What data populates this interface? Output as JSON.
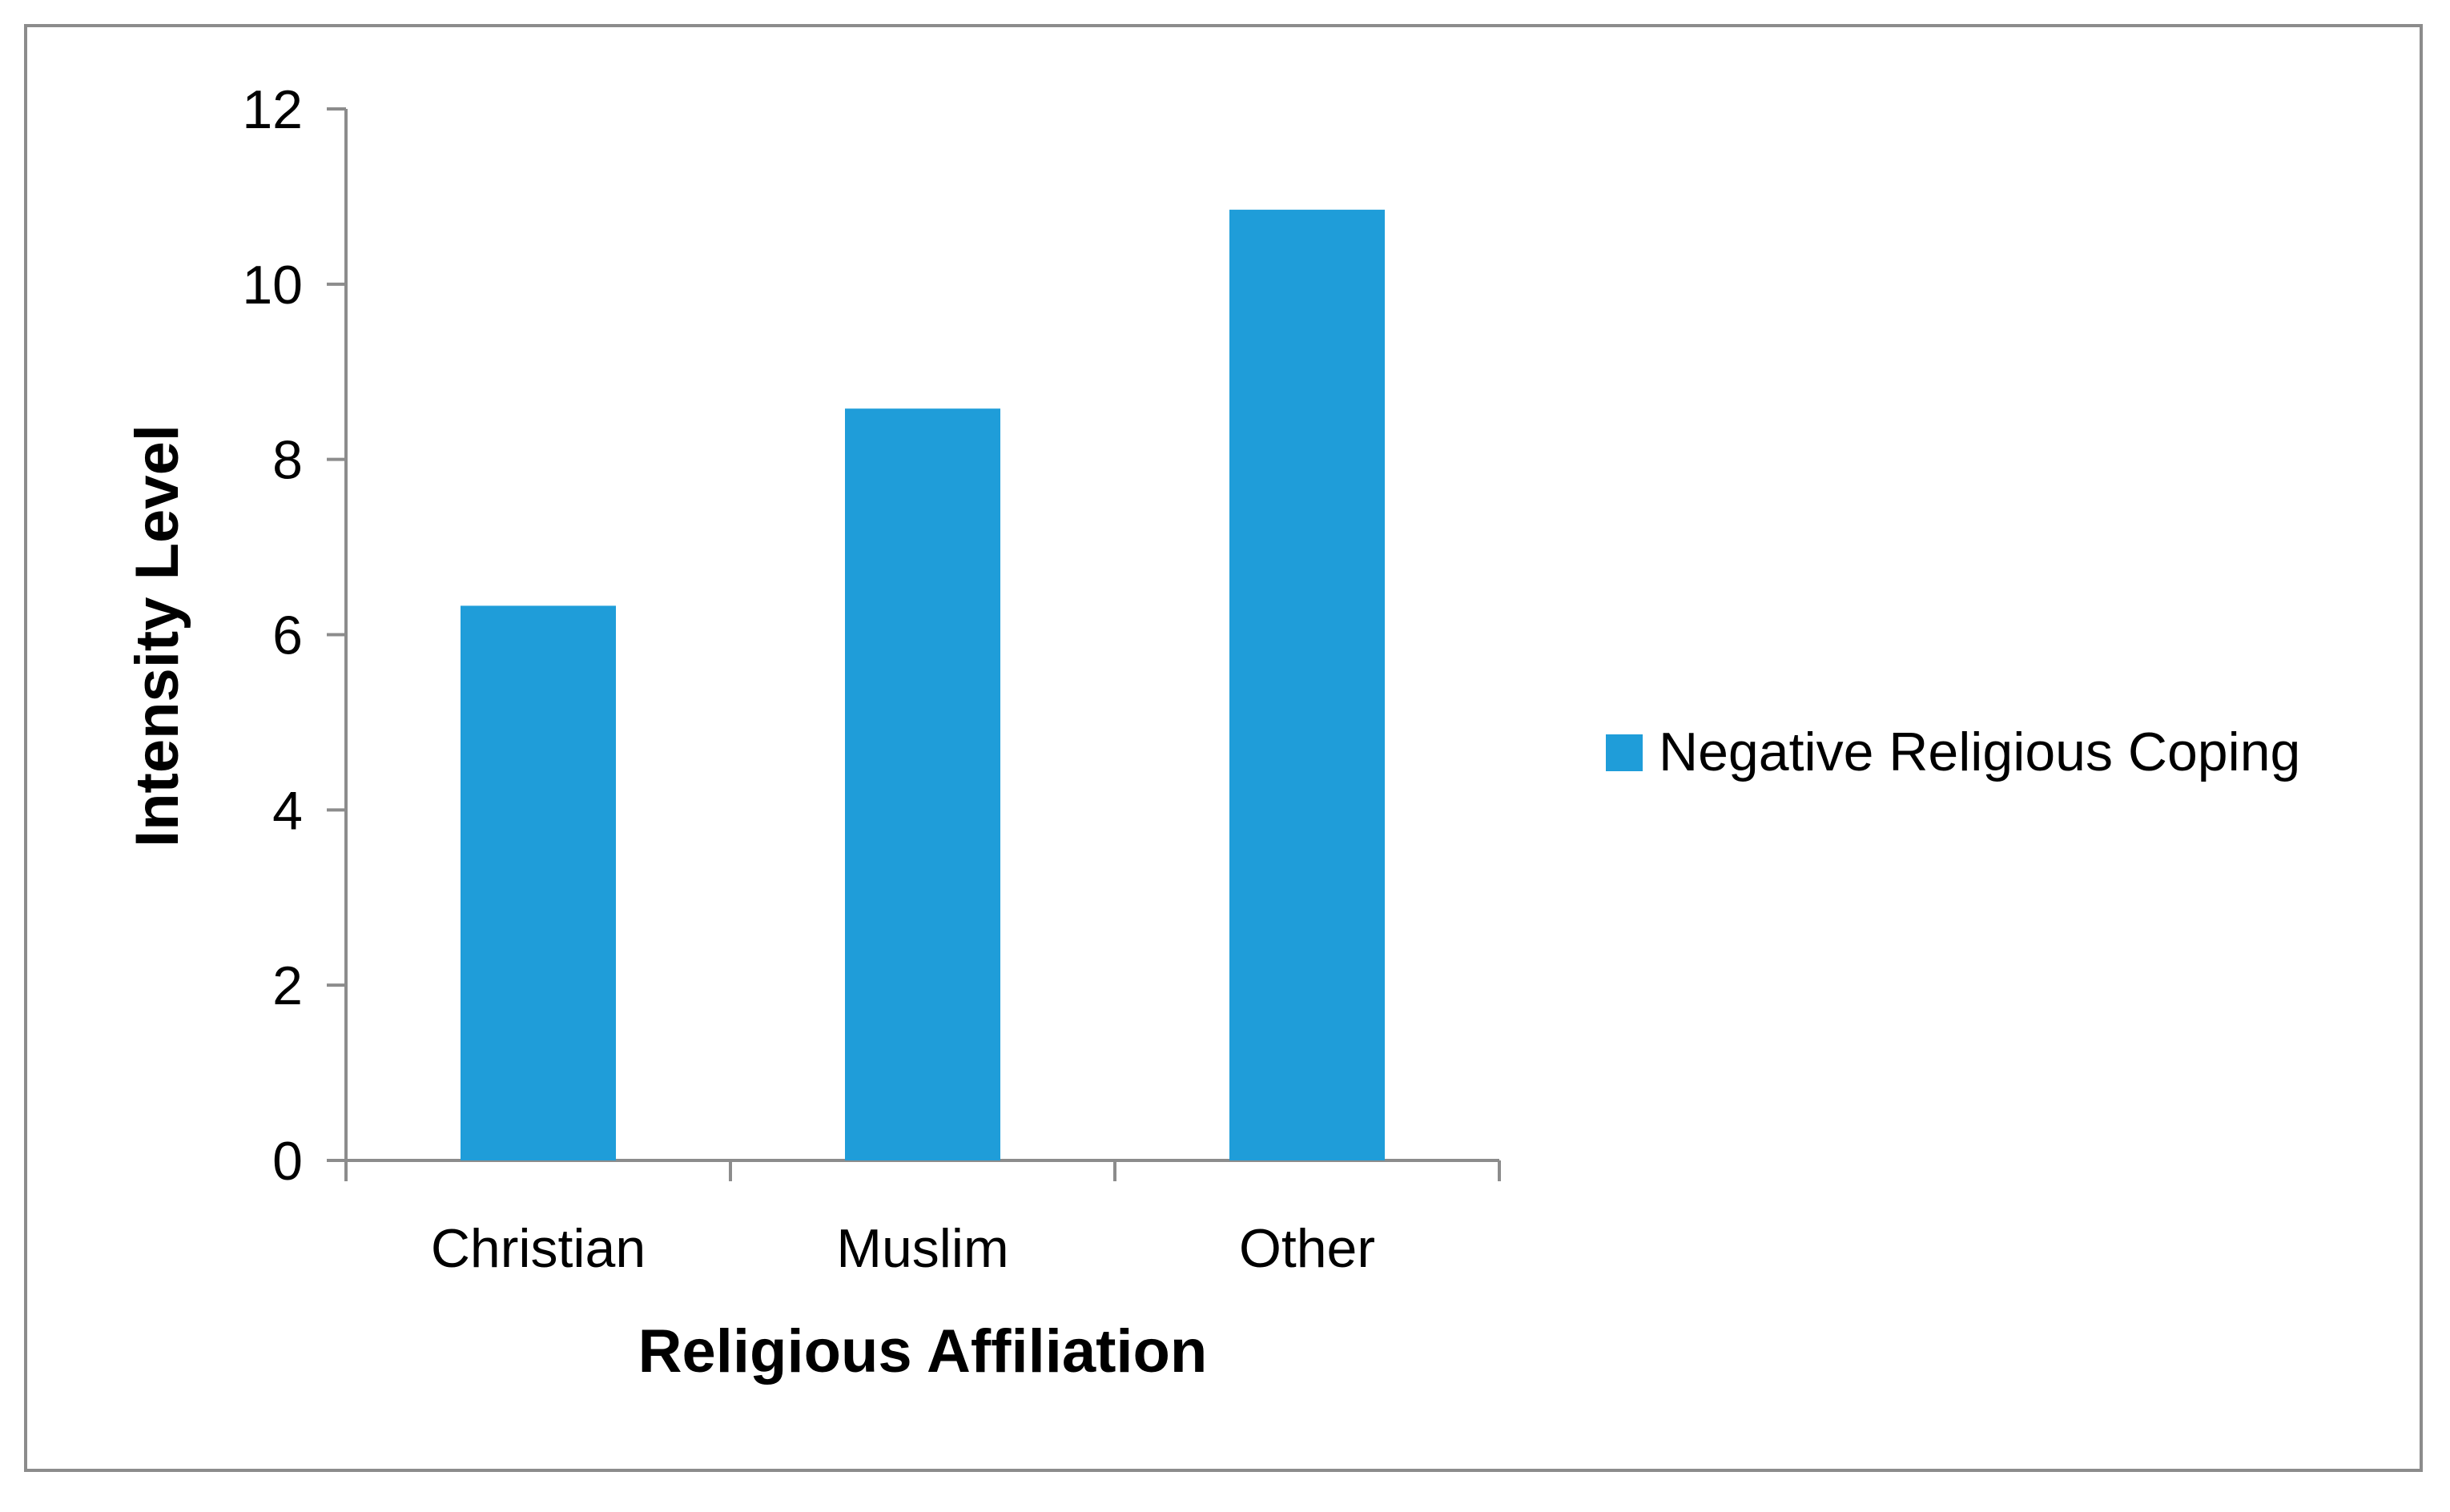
{
  "chart_data": {
    "type": "bar",
    "title": "",
    "xlabel": "Religious Affiliation",
    "ylabel": "Intensity Level",
    "categories": [
      "Christian",
      "Muslim",
      "Other"
    ],
    "series": [
      {
        "name": "Negative Religious Coping",
        "values": [
          6.33,
          8.58,
          10.85
        ],
        "color": "#1f9dd9"
      }
    ],
    "ylim": [
      0,
      12
    ],
    "yticks": [
      "0",
      "2",
      "4",
      "6",
      "8",
      "10",
      "12"
    ],
    "grid": false,
    "legend_position": "right"
  }
}
